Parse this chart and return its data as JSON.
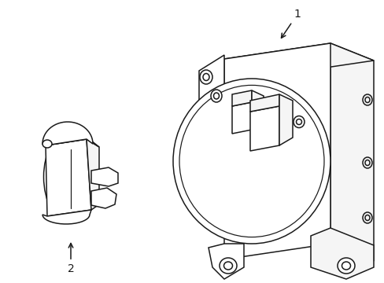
{
  "background_color": "#ffffff",
  "line_color": "#1a1a1a",
  "line_width": 1.1,
  "label1": "1",
  "label2": "2",
  "figsize": [
    4.89,
    3.6
  ],
  "dpi": 100
}
